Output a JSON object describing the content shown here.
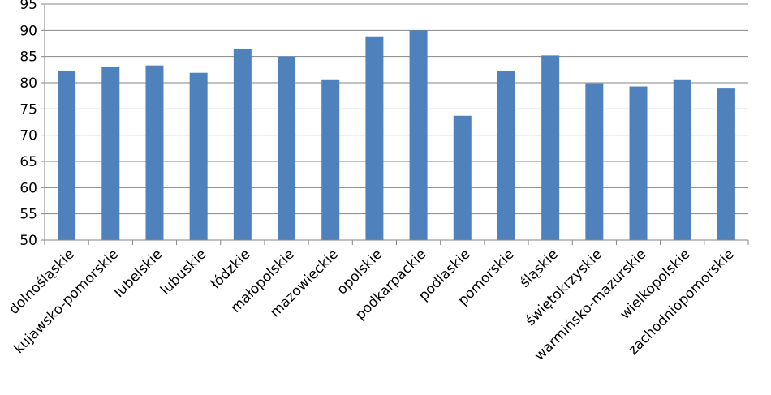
{
  "chart_data": {
    "type": "bar",
    "categories": [
      "dolnośląskie",
      "kujawsko-pomorskie",
      "lubelskie",
      "lubuskie",
      "łódzkie",
      "małopolskie",
      "mazowieckie",
      "opolskie",
      "podkarpackie",
      "podlaskie",
      "pomorskie",
      "śląskie",
      "świętokrzyskie",
      "warmińsko-mazurskie",
      "wielkopolskie",
      "zachodniopomorskie"
    ],
    "values": [
      82.3,
      83.1,
      83.3,
      81.9,
      86.5,
      85.0,
      80.5,
      88.7,
      90.0,
      73.7,
      82.3,
      85.2,
      79.9,
      79.3,
      80.5,
      78.9
    ],
    "title": "",
    "xlabel": "",
    "ylabel": "",
    "ylim": [
      50,
      95
    ],
    "yticks": [
      "50",
      "55",
      "60",
      "65",
      "70",
      "75",
      "80",
      "85",
      "90",
      "95"
    ],
    "grid": true,
    "bar_color": "#4f81bd",
    "grid_color": "#868686"
  }
}
